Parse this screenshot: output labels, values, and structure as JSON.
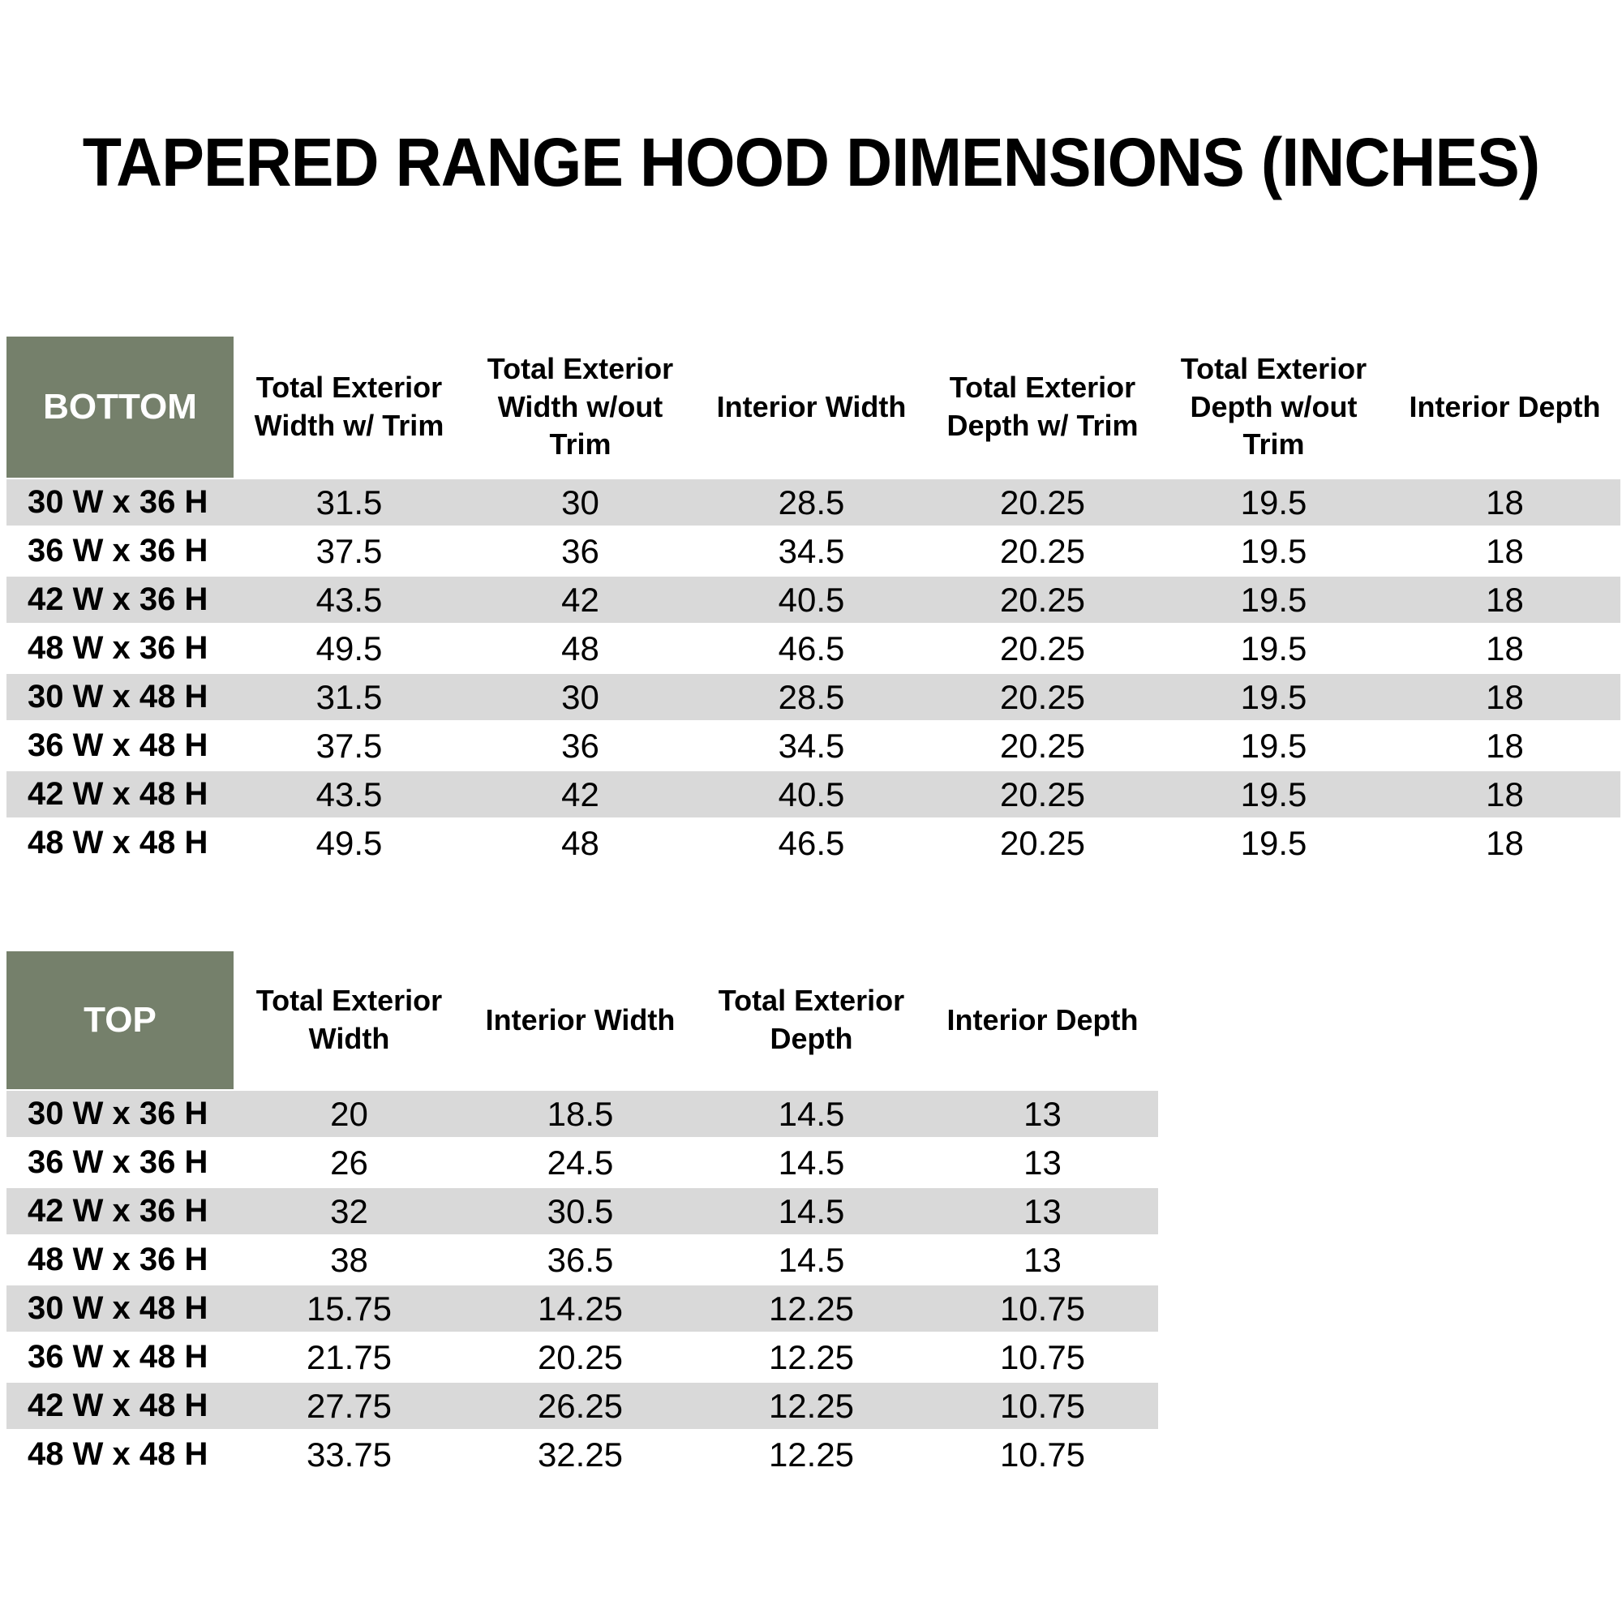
{
  "title": "TAPERED RANGE HOOD DIMENSIONS (INCHES)",
  "colors": {
    "header_green": "#75806B",
    "row_band_gray": "#D9D9D9",
    "header_text": "#FFFFFF",
    "body_text": "#000000",
    "background": "#FFFFFF"
  },
  "tables": [
    {
      "corner_label": "BOTTOM",
      "columns": [
        "Total Exterior Width w/ Trim",
        "Total Exterior Width w/out Trim",
        "Interior Width",
        "Total Exterior Depth w/ Trim",
        "Total Exterior Depth w/out Trim",
        "Interior Depth"
      ],
      "rows": [
        {
          "label": "30 W x 36 H",
          "values": [
            "31.5",
            "30",
            "28.5",
            "20.25",
            "19.5",
            "18"
          ]
        },
        {
          "label": "36 W x 36 H",
          "values": [
            "37.5",
            "36",
            "34.5",
            "20.25",
            "19.5",
            "18"
          ]
        },
        {
          "label": "42 W x 36 H",
          "values": [
            "43.5",
            "42",
            "40.5",
            "20.25",
            "19.5",
            "18"
          ]
        },
        {
          "label": "48 W x 36 H",
          "values": [
            "49.5",
            "48",
            "46.5",
            "20.25",
            "19.5",
            "18"
          ]
        },
        {
          "label": "30 W x 48 H",
          "values": [
            "31.5",
            "30",
            "28.5",
            "20.25",
            "19.5",
            "18"
          ]
        },
        {
          "label": "36 W x 48 H",
          "values": [
            "37.5",
            "36",
            "34.5",
            "20.25",
            "19.5",
            "18"
          ]
        },
        {
          "label": "42 W x 48 H",
          "values": [
            "43.5",
            "42",
            "40.5",
            "20.25",
            "19.5",
            "18"
          ]
        },
        {
          "label": "48 W x 48 H",
          "values": [
            "49.5",
            "48",
            "46.5",
            "20.25",
            "19.5",
            "18"
          ]
        }
      ]
    },
    {
      "corner_label": "TOP",
      "columns": [
        "Total Exterior Width",
        "Interior Width",
        "Total Exterior Depth",
        "Interior Depth"
      ],
      "rows": [
        {
          "label": "30 W x 36 H",
          "values": [
            "20",
            "18.5",
            "14.5",
            "13"
          ]
        },
        {
          "label": "36 W x 36 H",
          "values": [
            "26",
            "24.5",
            "14.5",
            "13"
          ]
        },
        {
          "label": "42 W x 36 H",
          "values": [
            "32",
            "30.5",
            "14.5",
            "13"
          ]
        },
        {
          "label": "48 W x 36 H",
          "values": [
            "38",
            "36.5",
            "14.5",
            "13"
          ]
        },
        {
          "label": "30 W x 48 H",
          "values": [
            "15.75",
            "14.25",
            "12.25",
            "10.75"
          ]
        },
        {
          "label": "36 W x 48 H",
          "values": [
            "21.75",
            "20.25",
            "12.25",
            "10.75"
          ]
        },
        {
          "label": "42 W x 48 H",
          "values": [
            "27.75",
            "26.25",
            "12.25",
            "10.75"
          ]
        },
        {
          "label": "48 W x 48 H",
          "values": [
            "33.75",
            "32.25",
            "12.25",
            "10.75"
          ]
        }
      ]
    }
  ]
}
